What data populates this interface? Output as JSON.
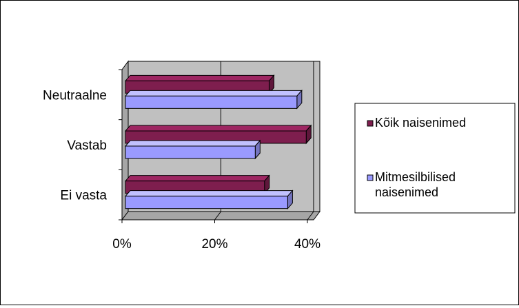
{
  "chart_data": {
    "type": "bar",
    "orientation": "horizontal",
    "style": "3d",
    "categories": [
      "Neutraalne",
      "Vastab",
      "Ei vasta"
    ],
    "series": [
      {
        "name": "Kõik naisenimed",
        "values": [
          31,
          39,
          30
        ],
        "color": "#7e1e4e"
      },
      {
        "name": "Mitmesilbilised naisenimed",
        "values": [
          37,
          28,
          35
        ],
        "color": "#9a9aff"
      }
    ],
    "x_ticks": [
      "0%",
      "20%",
      "40%"
    ],
    "xlim": [
      0,
      40
    ],
    "unit": "%",
    "grid": true,
    "legend_position": "right",
    "wall_color": "#c0c0c0"
  }
}
